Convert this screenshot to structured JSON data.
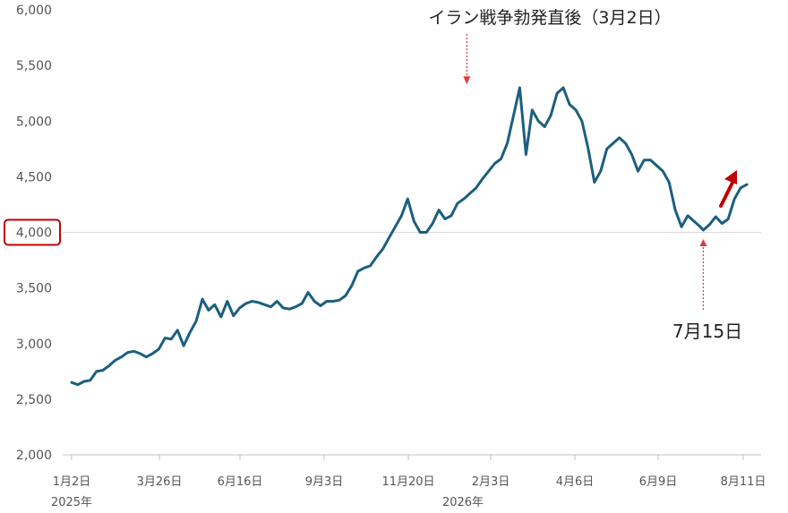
{
  "chart_data": {
    "type": "line",
    "ylim": [
      2000,
      6000
    ],
    "y_ticks": [
      "2,000",
      "2,500",
      "3,000",
      "3,500",
      "4,000",
      "4,500",
      "5,000",
      "5,500",
      "6,000"
    ],
    "x_ticks": [
      "1月2日",
      "3月26日",
      "6月16日",
      "9月3日",
      "11月20日",
      "2月3日",
      "4月6日",
      "6月9日",
      "8月11日"
    ],
    "year_labels": [
      "2025年",
      "2026年"
    ],
    "highlighted_tick": "4,000",
    "reference_value": 4000,
    "colors": {
      "line": "#1b5f7e",
      "annotation": "#e03b3b",
      "arrow": "#c00000",
      "refline": "#d9d9d9",
      "axis": "#bfbfbf",
      "text": "#555555"
    },
    "annotations": [
      {
        "text": "イラン戦争勃発直後（3月2日）",
        "x": 127,
        "y": 5290
      },
      {
        "text": "7月15日",
        "x": 203,
        "y": 4020
      }
    ],
    "series": [
      {
        "values": [
          [
            0,
            2650
          ],
          [
            2,
            2630
          ],
          [
            4,
            2660
          ],
          [
            6,
            2670
          ],
          [
            8,
            2750
          ],
          [
            10,
            2760
          ],
          [
            12,
            2800
          ],
          [
            14,
            2850
          ],
          [
            16,
            2880
          ],
          [
            18,
            2920
          ],
          [
            20,
            2930
          ],
          [
            22,
            2910
          ],
          [
            24,
            2880
          ],
          [
            26,
            2910
          ],
          [
            28,
            2950
          ],
          [
            30,
            3050
          ],
          [
            32,
            3040
          ],
          [
            34,
            3120
          ],
          [
            36,
            2980
          ],
          [
            38,
            3100
          ],
          [
            40,
            3200
          ],
          [
            42,
            3400
          ],
          [
            44,
            3300
          ],
          [
            46,
            3350
          ],
          [
            48,
            3240
          ],
          [
            50,
            3380
          ],
          [
            52,
            3250
          ],
          [
            54,
            3320
          ],
          [
            56,
            3360
          ],
          [
            58,
            3380
          ],
          [
            60,
            3370
          ],
          [
            62,
            3350
          ],
          [
            64,
            3330
          ],
          [
            66,
            3380
          ],
          [
            68,
            3320
          ],
          [
            70,
            3310
          ],
          [
            72,
            3330
          ],
          [
            74,
            3360
          ],
          [
            76,
            3460
          ],
          [
            78,
            3380
          ],
          [
            80,
            3340
          ],
          [
            82,
            3380
          ],
          [
            84,
            3380
          ],
          [
            86,
            3390
          ],
          [
            88,
            3430
          ],
          [
            90,
            3520
          ],
          [
            92,
            3650
          ],
          [
            94,
            3680
          ],
          [
            96,
            3700
          ],
          [
            98,
            3780
          ],
          [
            100,
            3850
          ],
          [
            102,
            3950
          ],
          [
            104,
            4050
          ],
          [
            106,
            4150
          ],
          [
            108,
            4300
          ],
          [
            110,
            4100
          ],
          [
            112,
            4000
          ],
          [
            114,
            4000
          ],
          [
            116,
            4080
          ],
          [
            118,
            4200
          ],
          [
            120,
            4120
          ],
          [
            122,
            4150
          ],
          [
            124,
            4260
          ],
          [
            126,
            4300
          ],
          [
            128,
            4350
          ],
          [
            130,
            4400
          ],
          [
            132,
            4480
          ],
          [
            134,
            4550
          ],
          [
            136,
            4620
          ],
          [
            138,
            4660
          ],
          [
            140,
            4800
          ],
          [
            142,
            5050
          ],
          [
            144,
            5300
          ],
          [
            146,
            4700
          ],
          [
            148,
            5100
          ],
          [
            150,
            5000
          ],
          [
            152,
            4950
          ],
          [
            154,
            5050
          ],
          [
            156,
            5250
          ],
          [
            158,
            5300
          ],
          [
            160,
            5150
          ],
          [
            162,
            5100
          ],
          [
            164,
            5000
          ],
          [
            166,
            4750
          ],
          [
            168,
            4450
          ],
          [
            170,
            4550
          ],
          [
            172,
            4750
          ],
          [
            174,
            4800
          ],
          [
            176,
            4850
          ],
          [
            178,
            4800
          ],
          [
            180,
            4700
          ],
          [
            182,
            4550
          ],
          [
            184,
            4650
          ],
          [
            186,
            4650
          ],
          [
            188,
            4600
          ],
          [
            190,
            4550
          ],
          [
            192,
            4450
          ],
          [
            194,
            4200
          ],
          [
            196,
            4050
          ],
          [
            198,
            4150
          ],
          [
            200,
            4100
          ],
          [
            202,
            4050
          ],
          [
            203,
            4020
          ],
          [
            205,
            4070
          ],
          [
            207,
            4140
          ],
          [
            209,
            4080
          ],
          [
            211,
            4120
          ],
          [
            213,
            4300
          ],
          [
            215,
            4400
          ],
          [
            217,
            4430
          ]
        ]
      }
    ]
  }
}
